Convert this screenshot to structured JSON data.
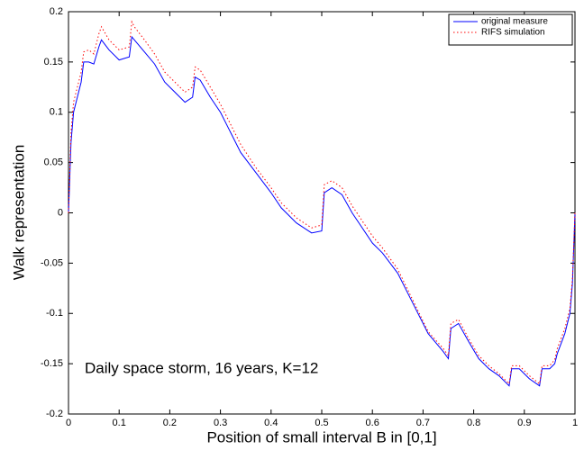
{
  "chart_data": {
    "type": "line",
    "xlabel": "Position of small interval B in [0,1]",
    "ylabel": "Walk representation",
    "annotation": "Daily space storm, 16 years, K=12",
    "x": [
      0,
      0.005,
      0.01,
      0.02,
      0.025,
      0.03,
      0.04,
      0.05,
      0.06,
      0.065,
      0.08,
      0.1,
      0.12,
      0.125,
      0.13,
      0.15,
      0.17,
      0.19,
      0.21,
      0.23,
      0.245,
      0.25,
      0.26,
      0.28,
      0.3,
      0.32,
      0.34,
      0.37,
      0.4,
      0.42,
      0.45,
      0.48,
      0.5,
      0.505,
      0.52,
      0.54,
      0.56,
      0.58,
      0.6,
      0.62,
      0.65,
      0.68,
      0.71,
      0.74,
      0.75,
      0.755,
      0.77,
      0.79,
      0.81,
      0.83,
      0.85,
      0.87,
      0.875,
      0.89,
      0.91,
      0.93,
      0.935,
      0.95,
      0.96,
      0.965,
      0.98,
      0.99,
      0.995,
      1.0
    ],
    "series": [
      {
        "name": "original measure",
        "color": "#0000ff",
        "dash": "solid",
        "values": [
          0,
          0.07,
          0.1,
          0.12,
          0.13,
          0.15,
          0.15,
          0.148,
          0.165,
          0.172,
          0.162,
          0.152,
          0.155,
          0.175,
          0.172,
          0.16,
          0.148,
          0.13,
          0.12,
          0.11,
          0.115,
          0.135,
          0.132,
          0.115,
          0.1,
          0.08,
          0.06,
          0.04,
          0.02,
          0.005,
          -0.01,
          -0.02,
          -0.018,
          0.02,
          0.025,
          0.018,
          0.0,
          -0.015,
          -0.03,
          -0.04,
          -0.06,
          -0.09,
          -0.12,
          -0.138,
          -0.145,
          -0.115,
          -0.11,
          -0.128,
          -0.145,
          -0.155,
          -0.162,
          -0.172,
          -0.155,
          -0.155,
          -0.165,
          -0.172,
          -0.155,
          -0.155,
          -0.15,
          -0.14,
          -0.12,
          -0.1,
          -0.07,
          0.0
        ]
      },
      {
        "name": "RIFS simulation",
        "color": "#ff0000",
        "dash": "dotted",
        "values": [
          0.0,
          0.08,
          0.11,
          0.13,
          0.14,
          0.16,
          0.162,
          0.158,
          0.178,
          0.185,
          0.172,
          0.162,
          0.165,
          0.19,
          0.185,
          0.172,
          0.158,
          0.14,
          0.13,
          0.12,
          0.125,
          0.145,
          0.142,
          0.125,
          0.108,
          0.088,
          0.068,
          0.045,
          0.025,
          0.01,
          -0.005,
          -0.015,
          -0.012,
          0.028,
          0.032,
          0.025,
          0.007,
          -0.008,
          -0.023,
          -0.035,
          -0.056,
          -0.087,
          -0.118,
          -0.135,
          -0.142,
          -0.11,
          -0.106,
          -0.125,
          -0.142,
          -0.152,
          -0.16,
          -0.17,
          -0.152,
          -0.152,
          -0.162,
          -0.17,
          -0.152,
          -0.152,
          -0.146,
          -0.135,
          -0.115,
          -0.095,
          -0.065,
          0.0
        ]
      }
    ],
    "xlim": [
      0,
      1
    ],
    "xticks": [
      0,
      0.1,
      0.2,
      0.3,
      0.4,
      0.5,
      0.6,
      0.7,
      0.8,
      0.9,
      1
    ],
    "ylim": [
      -0.2,
      0.2
    ],
    "yticks": [
      -0.2,
      -0.15,
      -0.1,
      -0.05,
      0,
      0.05,
      0.1,
      0.15,
      0.2
    ],
    "legend": "upper right",
    "grid": false
  }
}
